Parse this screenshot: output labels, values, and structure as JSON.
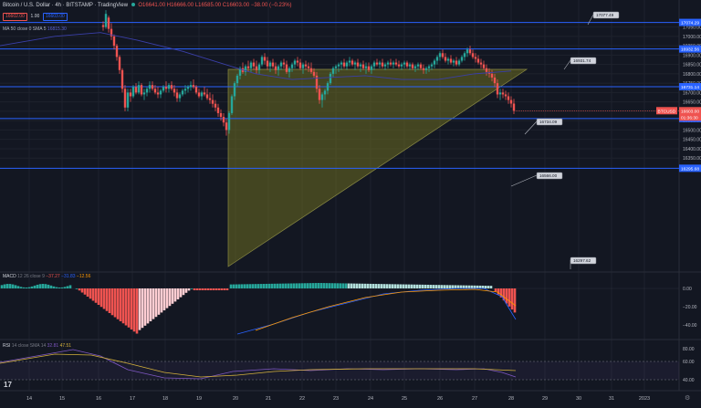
{
  "header": {
    "title": "Bitcoin / U.S. Dollar · 4h · BITSTAMP · TradingView",
    "ohlc": "O16641.00  H16666.00  L16585.00  C16603.00  −38.00 (−0.23%)",
    "sell_price": "16602.00",
    "spread": "1.00",
    "buy_price": "16603.00",
    "ma_label": "MA 50 close 0 SMA 5",
    "ma_value": "16815.30"
  },
  "price_axis": {
    "ticks": [
      "17050.00",
      "17000.00",
      "16950.00",
      "16900.00",
      "16850.00",
      "16800.00",
      "16750.00",
      "16700.00",
      "16650.00",
      "16600.00",
      "16550.00",
      "16500.00",
      "16450.00",
      "16400.00",
      "16350.00"
    ],
    "badges": [
      "17074.29",
      "16932.56",
      "16731.14",
      "16561.25",
      "16295.68"
    ],
    "current_price": "16603.00",
    "current_countdown": "01:36:30",
    "currency_tag": "BTCUSD"
  },
  "callouts": [
    "17077.49",
    "16931.74",
    "16734.09",
    "16566.00",
    "16297.62"
  ],
  "macd": {
    "label": "MACD",
    "values": "12 26 close 9",
    "v1": "−37.27",
    "v2": "−31.83",
    "v3": "−12.56",
    "ticks": [
      "0.00",
      "−20.00",
      "−40.00"
    ]
  },
  "rsi": {
    "label": "RSI",
    "params": "14 close SMA 14",
    "v1": "32.81",
    "v2": "47.51",
    "ticks": [
      "80.00",
      "60.00",
      "40.00"
    ]
  },
  "time_axis": [
    "14",
    "15",
    "16",
    "17",
    "18",
    "19",
    "20",
    "21",
    "22",
    "23",
    "24",
    "25",
    "26",
    "27",
    "28",
    "29",
    "30",
    "31",
    "2023"
  ],
  "colors": {
    "bull": "#26a69a",
    "bear": "#ef5350",
    "hline": "#2962ff",
    "triangle": "#6b6b20",
    "ma": "#3a3fa8"
  },
  "icons": [
    "tradingview-logo-icon",
    "settings-icon",
    "eye-icon",
    "close-icon"
  ]
}
